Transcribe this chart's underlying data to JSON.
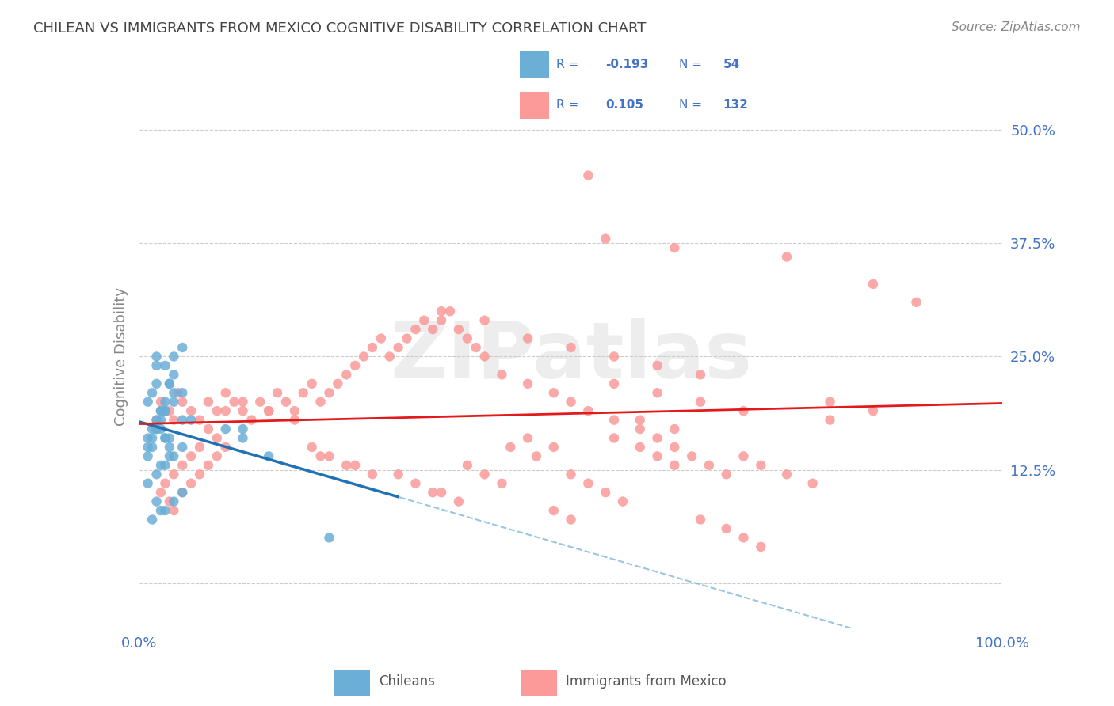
{
  "title": "CHILEAN VS IMMIGRANTS FROM MEXICO COGNITIVE DISABILITY CORRELATION CHART",
  "source": "Source: ZipAtlas.com",
  "ylabel": "Cognitive Disability",
  "xlabel": "",
  "xlim": [
    0.0,
    1.0
  ],
  "ylim": [
    -0.05,
    0.55
  ],
  "yticks": [
    0.0,
    0.125,
    0.25,
    0.375,
    0.5
  ],
  "ytick_labels": [
    "",
    "12.5%",
    "25.0%",
    "37.5%",
    "50.0%"
  ],
  "xticks": [
    0.0,
    0.25,
    0.5,
    0.75,
    1.0
  ],
  "xtick_labels": [
    "0.0%",
    "",
    "",
    "",
    "100.0%"
  ],
  "chilean_color": "#6baed6",
  "mexico_color": "#fb9a99",
  "chilean_line_color": "#2171b5",
  "mexico_line_color": "#e31a1c",
  "dashed_line_color": "#6baed6",
  "legend_R_chilean": "-0.193",
  "legend_N_chilean": "54",
  "legend_R_mexico": "0.105",
  "legend_N_mexico": "132",
  "watermark": "ZIPatlas",
  "title_color": "#444444",
  "axis_label_color": "#4472C4",
  "tick_color": "#4472C4",
  "background_color": "#ffffff",
  "chilean_scatter_x": [
    0.02,
    0.03,
    0.015,
    0.025,
    0.035,
    0.01,
    0.04,
    0.05,
    0.02,
    0.03,
    0.01,
    0.06,
    0.04,
    0.025,
    0.035,
    0.015,
    0.02,
    0.03,
    0.04,
    0.05,
    0.02,
    0.015,
    0.025,
    0.03,
    0.04,
    0.05,
    0.01,
    0.035,
    0.02,
    0.025,
    0.03,
    0.01,
    0.015,
    0.04,
    0.05,
    0.025,
    0.02,
    0.03,
    0.035,
    0.01,
    0.02,
    0.03,
    0.04,
    0.05,
    0.015,
    0.025,
    0.03,
    0.035,
    0.02,
    0.1,
    0.12,
    0.15,
    0.22,
    0.12
  ],
  "chilean_scatter_y": [
    0.18,
    0.2,
    0.16,
    0.19,
    0.22,
    0.15,
    0.21,
    0.18,
    0.17,
    0.19,
    0.2,
    0.18,
    0.23,
    0.17,
    0.16,
    0.21,
    0.25,
    0.24,
    0.25,
    0.26,
    0.22,
    0.17,
    0.18,
    0.19,
    0.2,
    0.21,
    0.16,
    0.22,
    0.17,
    0.19,
    0.16,
    0.14,
    0.15,
    0.14,
    0.15,
    0.13,
    0.12,
    0.13,
    0.14,
    0.11,
    0.09,
    0.08,
    0.09,
    0.1,
    0.07,
    0.08,
    0.16,
    0.15,
    0.24,
    0.17,
    0.16,
    0.14,
    0.05,
    0.17
  ],
  "mexico_scatter_x": [
    0.02,
    0.03,
    0.025,
    0.04,
    0.035,
    0.045,
    0.05,
    0.06,
    0.07,
    0.08,
    0.09,
    0.1,
    0.11,
    0.12,
    0.13,
    0.14,
    0.15,
    0.16,
    0.17,
    0.18,
    0.19,
    0.2,
    0.21,
    0.22,
    0.23,
    0.24,
    0.25,
    0.26,
    0.27,
    0.28,
    0.29,
    0.3,
    0.31,
    0.32,
    0.33,
    0.34,
    0.35,
    0.36,
    0.37,
    0.38,
    0.39,
    0.4,
    0.42,
    0.45,
    0.48,
    0.5,
    0.52,
    0.55,
    0.58,
    0.6,
    0.62,
    0.64,
    0.66,
    0.68,
    0.7,
    0.72,
    0.75,
    0.78,
    0.8,
    0.52,
    0.54,
    0.62,
    0.75,
    0.85,
    0.9,
    0.35,
    0.4,
    0.45,
    0.5,
    0.55,
    0.6,
    0.65,
    0.55,
    0.6,
    0.65,
    0.7,
    0.58,
    0.62,
    0.45,
    0.48,
    0.1,
    0.12,
    0.15,
    0.18,
    0.08,
    0.09,
    0.07,
    0.06,
    0.05,
    0.04,
    0.03,
    0.025,
    0.035,
    0.04,
    0.05,
    0.06,
    0.07,
    0.08,
    0.09,
    0.1,
    0.55,
    0.58,
    0.6,
    0.62,
    0.5,
    0.52,
    0.54,
    0.56,
    0.43,
    0.46,
    0.38,
    0.4,
    0.42,
    0.35,
    0.37,
    0.3,
    0.32,
    0.34,
    0.25,
    0.27,
    0.22,
    0.24,
    0.2,
    0.21,
    0.65,
    0.68,
    0.48,
    0.5,
    0.7,
    0.72,
    0.8,
    0.85
  ],
  "mexico_scatter_y": [
    0.18,
    0.19,
    0.2,
    0.18,
    0.19,
    0.21,
    0.2,
    0.19,
    0.18,
    0.2,
    0.19,
    0.21,
    0.2,
    0.19,
    0.18,
    0.2,
    0.19,
    0.21,
    0.2,
    0.19,
    0.21,
    0.22,
    0.2,
    0.21,
    0.22,
    0.23,
    0.24,
    0.25,
    0.26,
    0.27,
    0.25,
    0.26,
    0.27,
    0.28,
    0.29,
    0.28,
    0.29,
    0.3,
    0.28,
    0.27,
    0.26,
    0.25,
    0.23,
    0.22,
    0.21,
    0.2,
    0.19,
    0.18,
    0.17,
    0.16,
    0.15,
    0.14,
    0.13,
    0.12,
    0.14,
    0.13,
    0.12,
    0.11,
    0.18,
    0.45,
    0.38,
    0.37,
    0.36,
    0.33,
    0.31,
    0.3,
    0.29,
    0.27,
    0.26,
    0.25,
    0.24,
    0.23,
    0.22,
    0.21,
    0.2,
    0.19,
    0.18,
    0.17,
    0.16,
    0.15,
    0.19,
    0.2,
    0.19,
    0.18,
    0.17,
    0.16,
    0.15,
    0.14,
    0.13,
    0.12,
    0.11,
    0.1,
    0.09,
    0.08,
    0.1,
    0.11,
    0.12,
    0.13,
    0.14,
    0.15,
    0.16,
    0.15,
    0.14,
    0.13,
    0.12,
    0.11,
    0.1,
    0.09,
    0.15,
    0.14,
    0.13,
    0.12,
    0.11,
    0.1,
    0.09,
    0.12,
    0.11,
    0.1,
    0.13,
    0.12,
    0.14,
    0.13,
    0.15,
    0.14,
    0.07,
    0.06,
    0.08,
    0.07,
    0.05,
    0.04,
    0.2,
    0.19
  ]
}
